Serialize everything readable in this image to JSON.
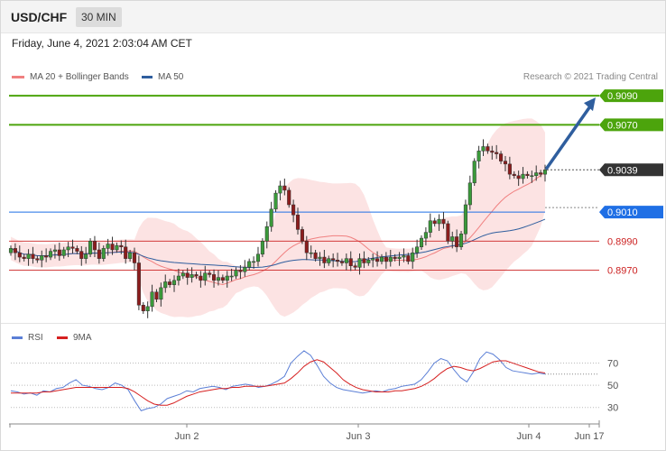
{
  "header": {
    "symbol": "USD/CHF",
    "timeframe": "30 MIN"
  },
  "datetime": "Friday, June 4, 2021 2:03:04 AM CET",
  "legend": {
    "ma20_label": "MA 20 + Bollinger Bands",
    "ma20_color": "#f08080",
    "ma50_label": "MA 50",
    "ma50_color": "#2f5e9e"
  },
  "copyright": "Research © 2021 Trading Central",
  "rsi_legend": {
    "rsi_label": "RSI",
    "rsi_color": "#5b7fd6",
    "ma_label": "9MA",
    "ma_color": "#d62020"
  },
  "chart_data": {
    "type": "candlestick",
    "price_axis": {
      "min": 0.8935,
      "max": 0.9095
    },
    "levels": [
      {
        "value": 0.909,
        "label": "0.9090",
        "color": "#4ca40c",
        "style": "resistance"
      },
      {
        "value": 0.907,
        "label": "0.9070",
        "color": "#4ca40c",
        "style": "resistance"
      },
      {
        "value": 0.9039,
        "label": "0.9039",
        "color": "#333333",
        "style": "current"
      },
      {
        "value": 0.901,
        "label": "0.9010",
        "color": "#1f6fe5",
        "style": "pivot"
      },
      {
        "value": 0.899,
        "label": "0.8990",
        "color": "#cc2222",
        "style": "support"
      },
      {
        "value": 0.897,
        "label": "0.8970",
        "color": "#cc2222",
        "style": "support"
      }
    ],
    "x_ticks": [
      "Jun 2",
      "Jun 3",
      "Jun 4",
      "Jun 17"
    ],
    "closes": [
      0.8985,
      0.8982,
      0.8979,
      0.8978,
      0.8981,
      0.8978,
      0.8977,
      0.898,
      0.8979,
      0.8983,
      0.8984,
      0.898,
      0.8984,
      0.8986,
      0.8985,
      0.8983,
      0.8978,
      0.8981,
      0.899,
      0.8984,
      0.8978,
      0.8985,
      0.8988,
      0.8984,
      0.8987,
      0.8986,
      0.8978,
      0.8982,
      0.8975,
      0.8946,
      0.8942,
      0.8945,
      0.8955,
      0.895,
      0.8958,
      0.8962,
      0.896,
      0.8963,
      0.8966,
      0.8968,
      0.8965,
      0.8967,
      0.8966,
      0.8963,
      0.8968,
      0.8967,
      0.8963,
      0.8965,
      0.8963,
      0.8966,
      0.8966,
      0.897,
      0.8969,
      0.8972,
      0.8976,
      0.8976,
      0.8981,
      0.899,
      0.9,
      0.9012,
      0.9023,
      0.9028,
      0.9025,
      0.9015,
      0.9008,
      0.8998,
      0.899,
      0.8982,
      0.8982,
      0.8978,
      0.8979,
      0.8975,
      0.8978,
      0.8977,
      0.8976,
      0.8975,
      0.8978,
      0.8973,
      0.8972,
      0.8978,
      0.8975,
      0.8977,
      0.8978,
      0.8976,
      0.8979,
      0.8976,
      0.8979,
      0.8978,
      0.8979,
      0.898,
      0.8976,
      0.8982,
      0.8986,
      0.8992,
      0.8996,
      0.9004,
      0.9002,
      0.9005,
      0.9002,
      0.899,
      0.8993,
      0.8986,
      0.8995,
      0.9015,
      0.903,
      0.9045,
      0.9052,
      0.9055,
      0.9052,
      0.9051,
      0.905,
      0.9045,
      0.9043,
      0.9036,
      0.9035,
      0.9033,
      0.9036,
      0.9035,
      0.9035,
      0.9037,
      0.9036,
      0.9039
    ],
    "ma50_value": 0.901,
    "rsi_axis": {
      "min": 20,
      "max": 85,
      "ticks": [
        70,
        50,
        30
      ]
    },
    "rsi": [
      45,
      44,
      42,
      43,
      41,
      45,
      44,
      47,
      48,
      52,
      55,
      50,
      49,
      47,
      46,
      48,
      52,
      50,
      46,
      36,
      27,
      29,
      30,
      33,
      38,
      40,
      42,
      45,
      44,
      47,
      48,
      49,
      48,
      46,
      49,
      50,
      51,
      50,
      48,
      49,
      51,
      54,
      58,
      70,
      76,
      81,
      77,
      68,
      58,
      52,
      48,
      46,
      45,
      44,
      43,
      44,
      45,
      44,
      46,
      47,
      49,
      50,
      51,
      55,
      62,
      70,
      74,
      72,
      64,
      57,
      53,
      62,
      74,
      80,
      78,
      73,
      66,
      63,
      62,
      61,
      60,
      61,
      60
    ],
    "rsi_ma": [
      43,
      43,
      43,
      43,
      43,
      44,
      44,
      45,
      46,
      47,
      48,
      48,
      48,
      48,
      48,
      48,
      48,
      48,
      47,
      44,
      40,
      36,
      33,
      32,
      32,
      34,
      37,
      40,
      42,
      44,
      45,
      46,
      47,
      47,
      48,
      48,
      49,
      49,
      49,
      49,
      50,
      51,
      52,
      56,
      61,
      67,
      71,
      73,
      71,
      66,
      61,
      55,
      51,
      48,
      46,
      45,
      44,
      44,
      44,
      45,
      45,
      46,
      47,
      49,
      52,
      56,
      61,
      65,
      67,
      66,
      64,
      63,
      65,
      68,
      71,
      72,
      72,
      70,
      68,
      66,
      64,
      62,
      61
    ]
  }
}
